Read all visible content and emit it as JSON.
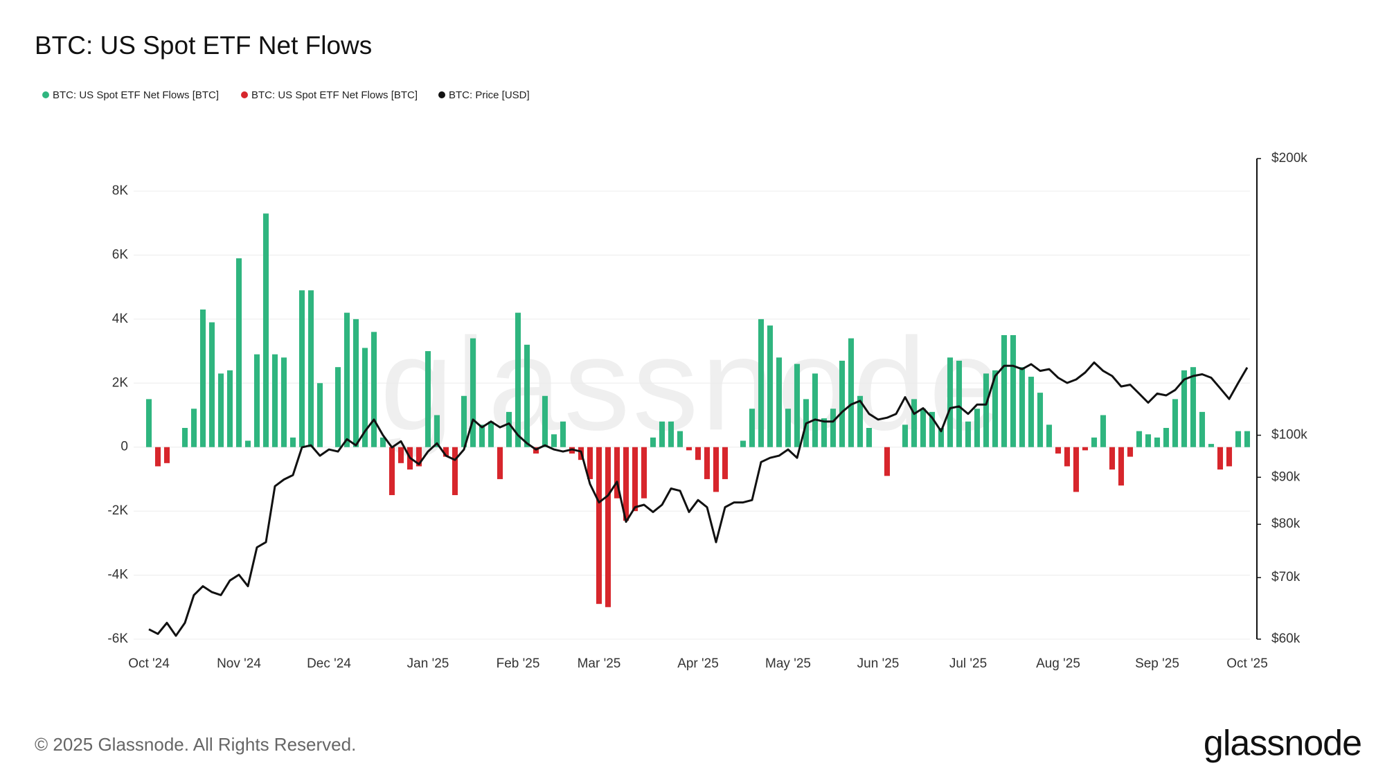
{
  "chart_data": {
    "type": "bar",
    "title": "BTC: US Spot ETF Net Flows",
    "categories": [
      "Oct '24",
      null,
      null,
      null,
      null,
      null,
      null,
      null,
      null,
      null,
      "Nov '24",
      null,
      null,
      null,
      null,
      null,
      null,
      null,
      null,
      null,
      "Dec '24",
      null,
      null,
      null,
      null,
      null,
      null,
      null,
      null,
      null,
      null,
      "Jan '25",
      null,
      null,
      null,
      null,
      null,
      null,
      null,
      null,
      null,
      "Feb '25",
      null,
      null,
      null,
      null,
      null,
      null,
      null,
      null,
      "Mar '25",
      null,
      null,
      null,
      null,
      null,
      null,
      null,
      null,
      null,
      null,
      "Apr '25",
      null,
      null,
      null,
      null,
      null,
      null,
      null,
      null,
      null,
      "May '25",
      null,
      null,
      null,
      null,
      null,
      null,
      null,
      null,
      null,
      "Jun '25",
      null,
      null,
      null,
      null,
      null,
      null,
      null,
      null,
      null,
      "Jul '25",
      null,
      null,
      null,
      null,
      null,
      null,
      null,
      null,
      null,
      "Aug '25",
      null,
      null,
      null,
      null,
      null,
      null,
      null,
      null,
      null,
      null,
      "Sep '25",
      null,
      null,
      null,
      null,
      null,
      null,
      null,
      null,
      null,
      "Oct '25"
    ],
    "series": [
      {
        "name": "BTC: US Spot ETF Net Flows [BTC]",
        "color": "#2fb57f",
        "type": "bar",
        "values": [
          1500,
          null,
          null,
          0,
          600,
          1200,
          4300,
          3900,
          2300,
          2400,
          5900,
          200,
          2900,
          7300,
          2900,
          2800,
          300,
          4900,
          4900,
          2000,
          0,
          2500,
          4200,
          4000,
          3100,
          3600,
          300,
          null,
          null,
          null,
          null,
          3000,
          1000,
          null,
          null,
          1600,
          3400,
          700,
          800,
          null,
          1100,
          4200,
          3200,
          null,
          1600,
          400,
          800,
          null,
          null,
          null,
          null,
          null,
          null,
          null,
          null,
          null,
          300,
          800,
          800,
          500,
          null,
          null,
          null,
          null,
          null,
          0,
          200,
          1200,
          4000,
          3800,
          2800,
          1200,
          2600,
          1500,
          2300,
          900,
          1200,
          2700,
          3400,
          1600,
          600,
          0,
          null,
          0,
          700,
          1500,
          1200,
          1100,
          600,
          2800,
          2700,
          800,
          1200,
          2300,
          2400,
          3500,
          3500,
          2500,
          2200,
          1700,
          700,
          null,
          null,
          null,
          null,
          300,
          1000,
          null,
          null,
          null,
          500,
          400,
          300,
          600,
          1500,
          2400,
          2500,
          1100,
          100,
          null,
          null,
          500,
          500
        ]
      },
      {
        "name": "BTC: US Spot ETF Net Flows [BTC]",
        "color": "#d7262c",
        "type": "bar",
        "values": [
          null,
          -600,
          -500,
          null,
          null,
          null,
          null,
          null,
          null,
          null,
          null,
          null,
          null,
          null,
          null,
          null,
          null,
          null,
          null,
          null,
          null,
          null,
          null,
          null,
          null,
          null,
          null,
          -1500,
          -500,
          -700,
          -600,
          null,
          null,
          -300,
          -1500,
          null,
          null,
          null,
          null,
          -1000,
          null,
          null,
          null,
          -200,
          null,
          null,
          null,
          -200,
          -400,
          -1000,
          -4900,
          -5000,
          -1600,
          -2300,
          -2000,
          -1600,
          null,
          null,
          null,
          null,
          -100,
          -400,
          -1000,
          -1400,
          -1000,
          null,
          null,
          null,
          null,
          null,
          null,
          null,
          null,
          null,
          null,
          null,
          null,
          null,
          null,
          null,
          null,
          null,
          -900,
          null,
          null,
          null,
          null,
          null,
          null,
          null,
          null,
          null,
          null,
          null,
          null,
          null,
          null,
          null,
          null,
          null,
          null,
          -200,
          -600,
          -1400,
          -100,
          null,
          null,
          -700,
          -1200,
          -300,
          null,
          null,
          null,
          null,
          null,
          null,
          null,
          null,
          null,
          -700,
          -600,
          null,
          null
        ]
      },
      {
        "name": "BTC: Price [USD]",
        "color": "#111111",
        "type": "line",
        "axis": "y2",
        "values": [
          61500,
          60800,
          62500,
          60500,
          62500,
          67000,
          68500,
          67500,
          67000,
          69500,
          70500,
          68500,
          75500,
          76500,
          88000,
          89500,
          90500,
          97000,
          97500,
          95000,
          96500,
          96000,
          99000,
          97500,
          101000,
          104000,
          100000,
          97000,
          98500,
          94500,
          93000,
          96000,
          98000,
          95000,
          94000,
          96500,
          104000,
          102000,
          103500,
          102000,
          103000,
          100000,
          98000,
          96500,
          97500,
          96500,
          96000,
          96500,
          96000,
          88500,
          84500,
          86000,
          89000,
          80500,
          83500,
          84000,
          82500,
          84000,
          87500,
          87000,
          82500,
          85000,
          83500,
          76500,
          83500,
          84500,
          84500,
          85000,
          93500,
          94500,
          95000,
          96500,
          94500,
          103000,
          104000,
          103500,
          103500,
          106000,
          108000,
          109000,
          105500,
          104000,
          104500,
          105500,
          110000,
          105500,
          107000,
          104500,
          101000,
          107000,
          107500,
          105500,
          108000,
          108000,
          116000,
          119000,
          119000,
          118000,
          119500,
          117500,
          118000,
          115500,
          114000,
          115000,
          117000,
          120000,
          117500,
          116000,
          113000,
          113500,
          111000,
          108500,
          111000,
          110500,
          112000,
          115000,
          116000,
          116500,
          115500,
          112500,
          109500,
          114000,
          118500
        ]
      }
    ],
    "ylim": [
      -6000,
      8000
    ],
    "yticks": [
      {
        "value": -6000,
        "label": "-6K"
      },
      {
        "value": -4000,
        "label": "-4K"
      },
      {
        "value": -2000,
        "label": "-2K"
      },
      0,
      {
        "value": 2000,
        "label": "2K"
      },
      {
        "value": 4000,
        "label": "4K"
      },
      {
        "value": 6000,
        "label": "6K"
      },
      {
        "value": 8000,
        "label": "8K"
      }
    ],
    "y2lim": [
      60000,
      200000
    ],
    "y2log": true,
    "y2ticks": [
      {
        "value": 60000,
        "label": "$60k"
      },
      {
        "value": 70000,
        "label": "$70k"
      },
      {
        "value": 80000,
        "label": "$80k"
      },
      {
        "value": 90000,
        "label": "$90k"
      },
      {
        "value": 100000,
        "label": "$100k"
      },
      {
        "value": 200000,
        "label": "$200k"
      }
    ],
    "grid": true,
    "legend": "top-left"
  },
  "watermark": "glassnode",
  "copyright": "© 2025 Glassnode. All Rights Reserved.",
  "logo": "glassnode"
}
